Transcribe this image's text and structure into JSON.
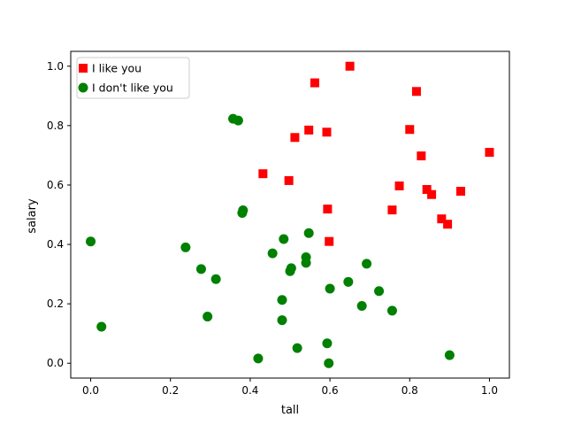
{
  "chart_data": {
    "type": "scatter",
    "xlabel": "tall",
    "ylabel": "salary",
    "xlim": [
      -0.05,
      1.05
    ],
    "ylim": [
      -0.05,
      1.05
    ],
    "xticks": [
      "0.0",
      "0.2",
      "0.4",
      "0.6",
      "0.8",
      "1.0"
    ],
    "yticks": [
      "0.0",
      "0.2",
      "0.4",
      "0.6",
      "0.8",
      "1.0"
    ],
    "grid": false,
    "legend_position": "upper-left",
    "series": [
      {
        "name": "I like you",
        "marker": "square",
        "color": "#ff0000",
        "points": [
          [
            0.65,
            1.0
          ],
          [
            0.562,
            0.944
          ],
          [
            0.817,
            0.915
          ],
          [
            0.547,
            0.785
          ],
          [
            0.512,
            0.76
          ],
          [
            0.592,
            0.778
          ],
          [
            0.8,
            0.787
          ],
          [
            0.829,
            0.698
          ],
          [
            1.0,
            0.71
          ],
          [
            0.432,
            0.638
          ],
          [
            0.497,
            0.615
          ],
          [
            0.774,
            0.597
          ],
          [
            0.843,
            0.585
          ],
          [
            0.855,
            0.568
          ],
          [
            0.928,
            0.579
          ],
          [
            0.594,
            0.519
          ],
          [
            0.756,
            0.516
          ],
          [
            0.88,
            0.486
          ],
          [
            0.895,
            0.468
          ],
          [
            0.598,
            0.41
          ]
        ]
      },
      {
        "name": "I don't like you",
        "marker": "circle",
        "color": "#008000",
        "points": [
          [
            0.357,
            0.823
          ],
          [
            0.37,
            0.817
          ],
          [
            0.382,
            0.515
          ],
          [
            0.38,
            0.506
          ],
          [
            0.0,
            0.41
          ],
          [
            0.547,
            0.438
          ],
          [
            0.484,
            0.418
          ],
          [
            0.238,
            0.39
          ],
          [
            0.456,
            0.37
          ],
          [
            0.54,
            0.357
          ],
          [
            0.54,
            0.338
          ],
          [
            0.692,
            0.335
          ],
          [
            0.503,
            0.32
          ],
          [
            0.5,
            0.31
          ],
          [
            0.277,
            0.317
          ],
          [
            0.314,
            0.283
          ],
          [
            0.646,
            0.274
          ],
          [
            0.6,
            0.251
          ],
          [
            0.723,
            0.243
          ],
          [
            0.48,
            0.213
          ],
          [
            0.68,
            0.193
          ],
          [
            0.756,
            0.177
          ],
          [
            0.293,
            0.157
          ],
          [
            0.48,
            0.145
          ],
          [
            0.027,
            0.123
          ],
          [
            0.593,
            0.067
          ],
          [
            0.518,
            0.051
          ],
          [
            0.9,
            0.027
          ],
          [
            0.42,
            0.016
          ],
          [
            0.597,
            0.0
          ]
        ]
      }
    ]
  }
}
